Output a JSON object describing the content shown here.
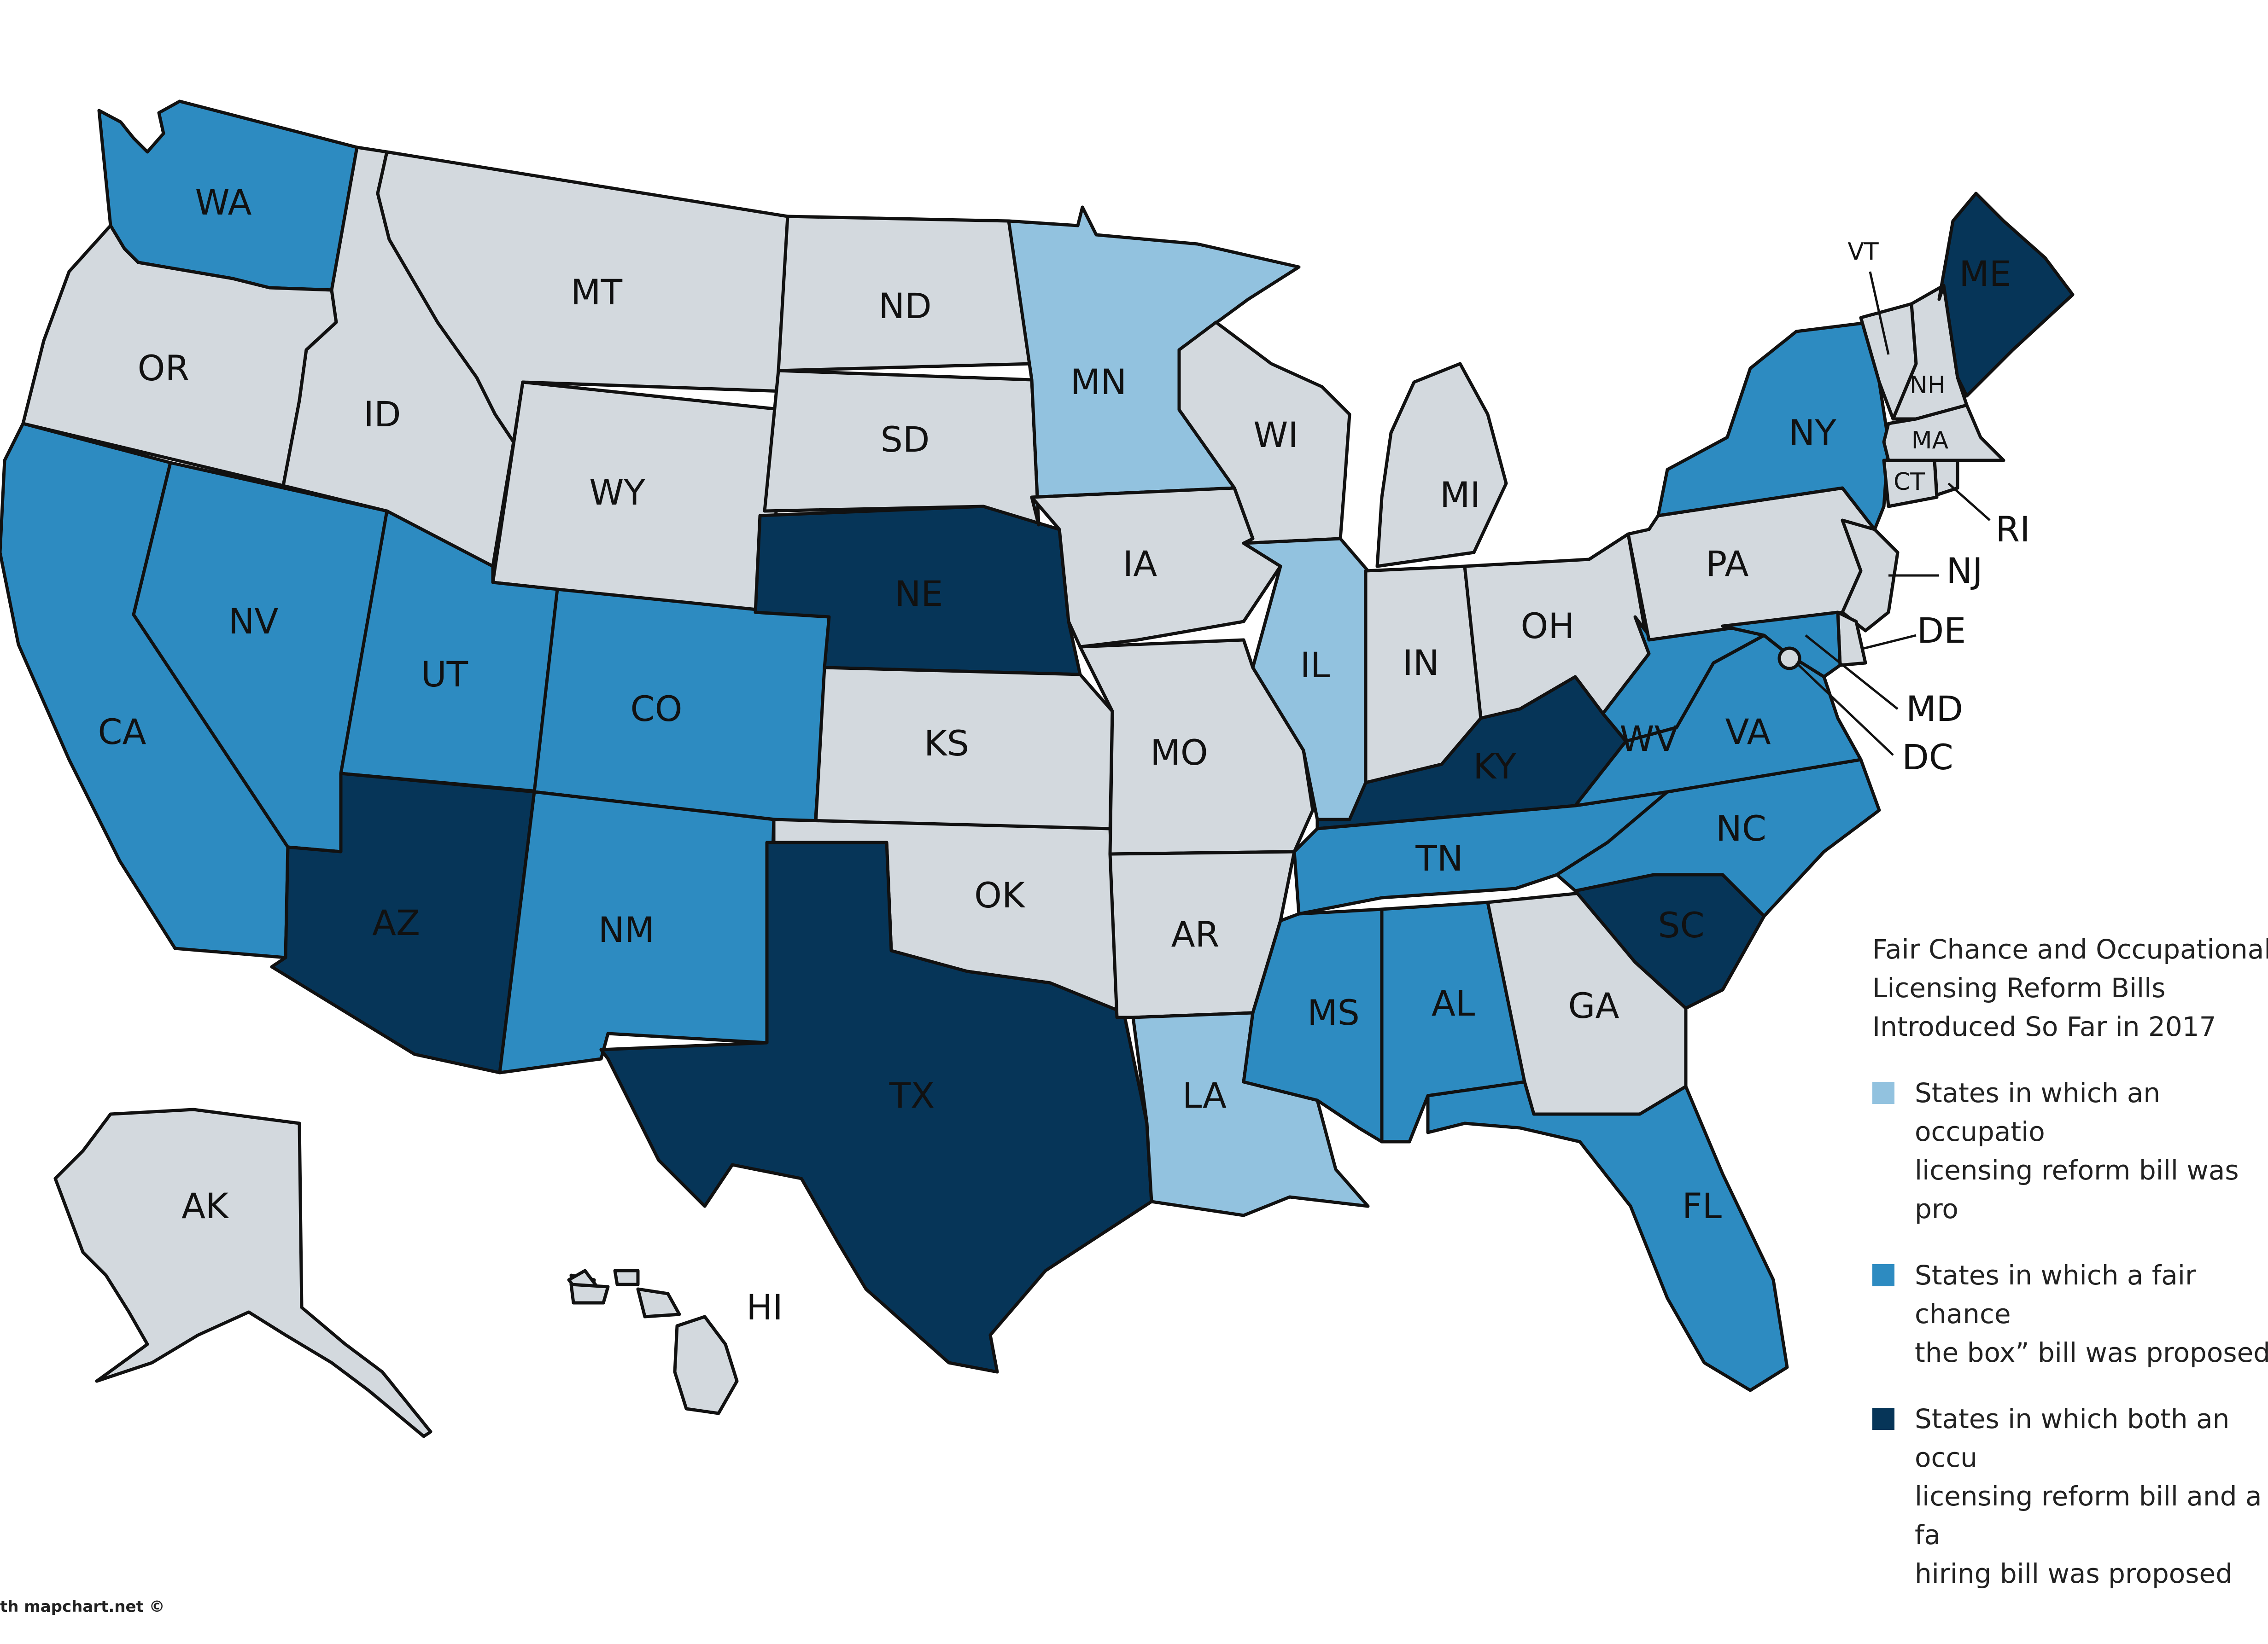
{
  "colors": {
    "none": "#d3d9de",
    "occupational": "#92c2df",
    "fair_chance": "#2d8bc1",
    "both": "#063558"
  },
  "legend": {
    "title": "Fair Chance and Occupational\nLicensing Reform Bills\nIntroduced So Far in 2017",
    "items": [
      {
        "category": "occupational",
        "text": "States in which an occupatio\nlicensing reform bill was pro"
      },
      {
        "category": "fair_chance",
        "text": "States in which a fair chance\nthe box” bill was proposed"
      },
      {
        "category": "both",
        "text": "States in which both an occu\nlicensing reform bill and a fa\nhiring bill was proposed"
      }
    ]
  },
  "credit": "th mapchart.net ©",
  "states": {
    "WA": {
      "label": "WA",
      "category": "fair_chance"
    },
    "OR": {
      "label": "OR",
      "category": "none"
    },
    "CA": {
      "label": "CA",
      "category": "fair_chance"
    },
    "ID": {
      "label": "ID",
      "category": "none"
    },
    "NV": {
      "label": "NV",
      "category": "fair_chance"
    },
    "MT": {
      "label": "MT",
      "category": "none"
    },
    "WY": {
      "label": "WY",
      "category": "none"
    },
    "UT": {
      "label": "UT",
      "category": "fair_chance"
    },
    "AZ": {
      "label": "AZ",
      "category": "both"
    },
    "CO": {
      "label": "CO",
      "category": "fair_chance"
    },
    "NM": {
      "label": "NM",
      "category": "fair_chance"
    },
    "ND": {
      "label": "ND",
      "category": "none"
    },
    "SD": {
      "label": "SD",
      "category": "none"
    },
    "NE": {
      "label": "NE",
      "category": "both"
    },
    "KS": {
      "label": "KS",
      "category": "none"
    },
    "OK": {
      "label": "OK",
      "category": "none"
    },
    "TX": {
      "label": "TX",
      "category": "both"
    },
    "MN": {
      "label": "MN",
      "category": "occupational"
    },
    "IA": {
      "label": "IA",
      "category": "none"
    },
    "MO": {
      "label": "MO",
      "category": "none"
    },
    "AR": {
      "label": "AR",
      "category": "none"
    },
    "LA": {
      "label": "LA",
      "category": "occupational"
    },
    "WI": {
      "label": "WI",
      "category": "none"
    },
    "IL": {
      "label": "IL",
      "category": "occupational"
    },
    "MI": {
      "label": "MI",
      "category": "none"
    },
    "IN": {
      "label": "IN",
      "category": "none"
    },
    "OH": {
      "label": "OH",
      "category": "none"
    },
    "KY": {
      "label": "KY",
      "category": "both"
    },
    "TN": {
      "label": "TN",
      "category": "fair_chance"
    },
    "MS": {
      "label": "MS",
      "category": "fair_chance"
    },
    "AL": {
      "label": "AL",
      "category": "fair_chance"
    },
    "GA": {
      "label": "GA",
      "category": "none"
    },
    "FL": {
      "label": "FL",
      "category": "fair_chance"
    },
    "SC": {
      "label": "SC",
      "category": "both"
    },
    "NC": {
      "label": "NC",
      "category": "fair_chance"
    },
    "VA": {
      "label": "VA",
      "category": "fair_chance"
    },
    "WV": {
      "label": "WV",
      "category": "fair_chance"
    },
    "PA": {
      "label": "PA",
      "category": "none"
    },
    "NY": {
      "label": "NY",
      "category": "fair_chance"
    },
    "VT": {
      "label": "VT",
      "category": "none"
    },
    "NH": {
      "label": "NH",
      "category": "none"
    },
    "ME": {
      "label": "ME",
      "category": "both"
    },
    "MA": {
      "label": "MA",
      "category": "none"
    },
    "RI": {
      "label": "RI",
      "category": "none"
    },
    "CT": {
      "label": "CT",
      "category": "none"
    },
    "NJ": {
      "label": "NJ",
      "category": "none"
    },
    "DE": {
      "label": "DE",
      "category": "none"
    },
    "MD": {
      "label": "MD",
      "category": "fair_chance"
    },
    "DC": {
      "label": "DC",
      "category": "none"
    },
    "AK": {
      "label": "AK",
      "category": "none"
    },
    "HI": {
      "label": "HI",
      "category": "none"
    }
  }
}
